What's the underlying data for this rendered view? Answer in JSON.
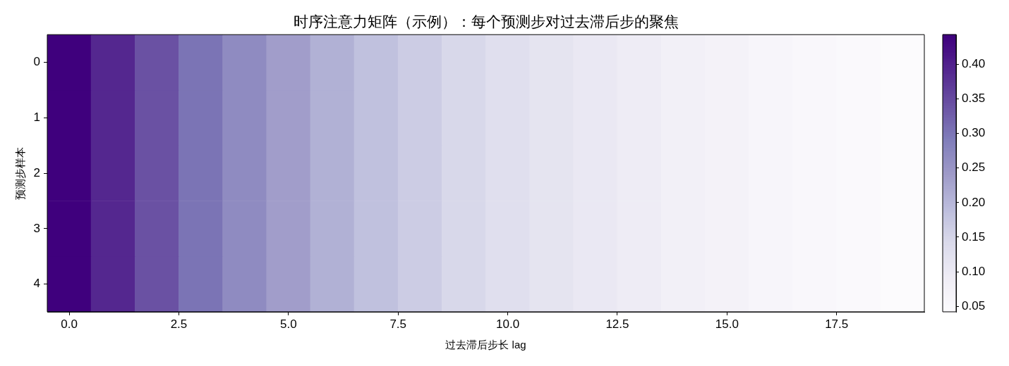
{
  "chart_data": {
    "type": "heatmap",
    "title": "时序注意力矩阵（示例）：每个预测步对过去滞后步的聚焦",
    "xlabel": "过去滞后步长 lag",
    "ylabel": "预测步样本",
    "x": [
      0,
      1,
      2,
      3,
      4,
      5,
      6,
      7,
      8,
      9,
      10,
      11,
      12,
      13,
      14,
      15,
      16,
      17,
      18,
      19
    ],
    "y_categories": [
      "0",
      "1",
      "2",
      "3",
      "4"
    ],
    "cells": [
      [
        0.443,
        0.393,
        0.343,
        0.303,
        0.268,
        0.238,
        0.21,
        0.186,
        0.166,
        0.145,
        0.128,
        0.116,
        0.104,
        0.094,
        0.081,
        0.073,
        0.062,
        0.055,
        0.05,
        0.042
      ],
      [
        0.443,
        0.393,
        0.343,
        0.303,
        0.268,
        0.238,
        0.21,
        0.186,
        0.166,
        0.145,
        0.128,
        0.116,
        0.104,
        0.094,
        0.081,
        0.073,
        0.062,
        0.055,
        0.05,
        0.042
      ],
      [
        0.443,
        0.393,
        0.343,
        0.303,
        0.268,
        0.238,
        0.21,
        0.186,
        0.166,
        0.145,
        0.128,
        0.116,
        0.104,
        0.094,
        0.081,
        0.073,
        0.062,
        0.055,
        0.05,
        0.042
      ],
      [
        0.443,
        0.393,
        0.343,
        0.303,
        0.268,
        0.238,
        0.21,
        0.186,
        0.166,
        0.145,
        0.128,
        0.116,
        0.104,
        0.094,
        0.081,
        0.073,
        0.062,
        0.055,
        0.05,
        0.042
      ],
      [
        0.443,
        0.393,
        0.343,
        0.303,
        0.268,
        0.238,
        0.21,
        0.186,
        0.166,
        0.145,
        0.128,
        0.116,
        0.104,
        0.094,
        0.081,
        0.073,
        0.062,
        0.055,
        0.05,
        0.042
      ]
    ],
    "xlim": [
      -0.5,
      19.5
    ],
    "xticks": [
      {
        "value": 0,
        "label": "0.0"
      },
      2.5,
      {
        "value": 5,
        "label": "5.0"
      },
      7.5,
      {
        "value": 10,
        "label": "10.0"
      },
      12.5,
      {
        "value": 15,
        "label": "15.0"
      },
      17.5
    ],
    "clim": [
      0.042,
      0.443
    ],
    "cticks": [
      0.05,
      {
        "value": 0.1,
        "label": "0.10"
      },
      0.15,
      {
        "value": 0.2,
        "label": "0.20"
      },
      0.25,
      {
        "value": 0.3,
        "label": "0.30"
      },
      0.35,
      {
        "value": 0.4,
        "label": "0.40"
      }
    ]
  }
}
